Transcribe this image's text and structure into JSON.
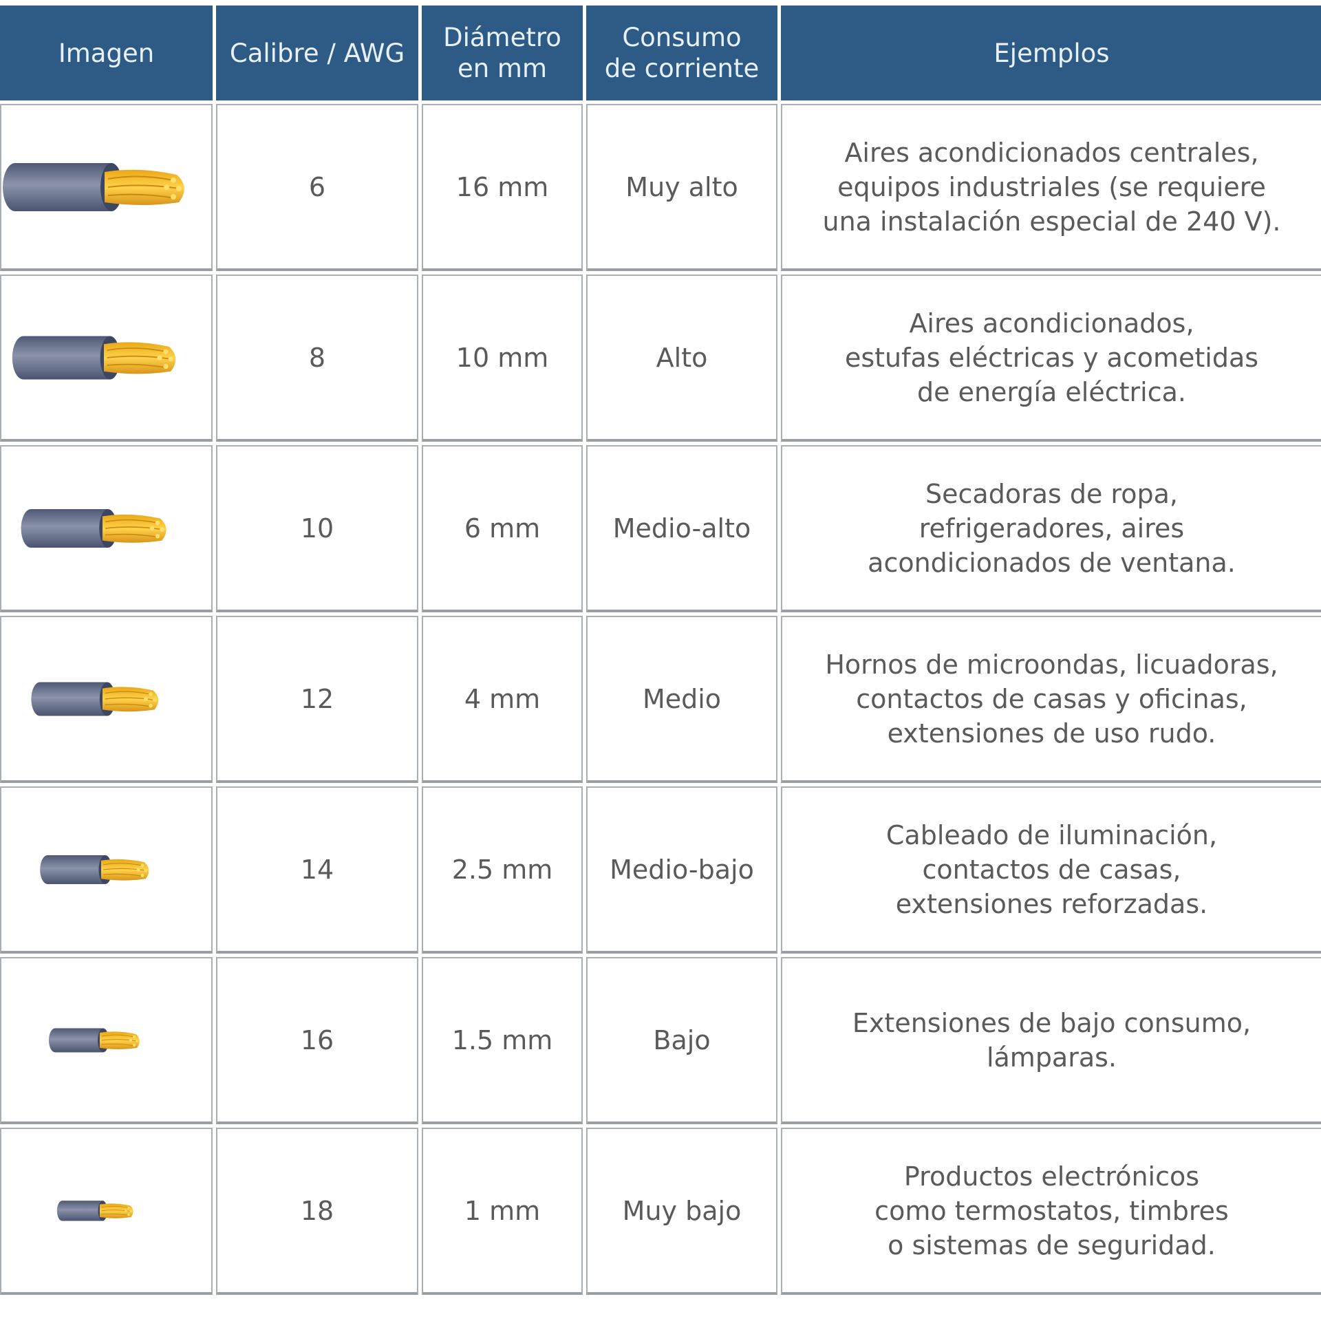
{
  "header": {
    "imagen": "Imagen",
    "calibre": "Calibre / AWG",
    "diametro": "Diámetro\nen mm",
    "consumo": "Consumo\nde corriente",
    "ejemplos": "Ejemplos"
  },
  "colors": {
    "header_bg": "#2e5b86",
    "header_text": "#e8f1f8",
    "insulation": "#6f7a94",
    "copper": "#f2b82a"
  },
  "rows": [
    {
      "image": "wire-icon",
      "awg": "6",
      "diameter": "16 mm",
      "consumption": "Muy alto",
      "examples": "Aires acondicionados centrales,\nequipos industriales (se requiere\nuna instalación especial de 240 V)."
    },
    {
      "image": "wire-icon",
      "awg": "8",
      "diameter": "10 mm",
      "consumption": "Alto",
      "examples": "Aires acondicionados,\nestufas eléctricas y acometidas\nde energía eléctrica."
    },
    {
      "image": "wire-icon",
      "awg": "10",
      "diameter": "6 mm",
      "consumption": "Medio-alto",
      "examples": "Secadoras de ropa,\nrefrigeradores, aires\nacondicionados de ventana."
    },
    {
      "image": "wire-icon",
      "awg": "12",
      "diameter": "4 mm",
      "consumption": "Medio",
      "examples": "Hornos de microondas, licuadoras,\ncontactos de casas y oficinas,\nextensiones de uso rudo."
    },
    {
      "image": "wire-icon",
      "awg": "14",
      "diameter": "2.5 mm",
      "consumption": "Medio-bajo",
      "examples": "Cableado de iluminación,\ncontactos de casas,\nextensiones reforzadas."
    },
    {
      "image": "wire-icon",
      "awg": "16",
      "diameter": "1.5 mm",
      "consumption": "Bajo",
      "examples": "Extensiones de bajo consumo,\nlámparas."
    },
    {
      "image": "wire-icon",
      "awg": "18",
      "diameter": "1 mm",
      "consumption": "Muy bajo",
      "examples": "Productos electrónicos\ncomo termostatos, timbres\no sistemas de seguridad."
    }
  ]
}
